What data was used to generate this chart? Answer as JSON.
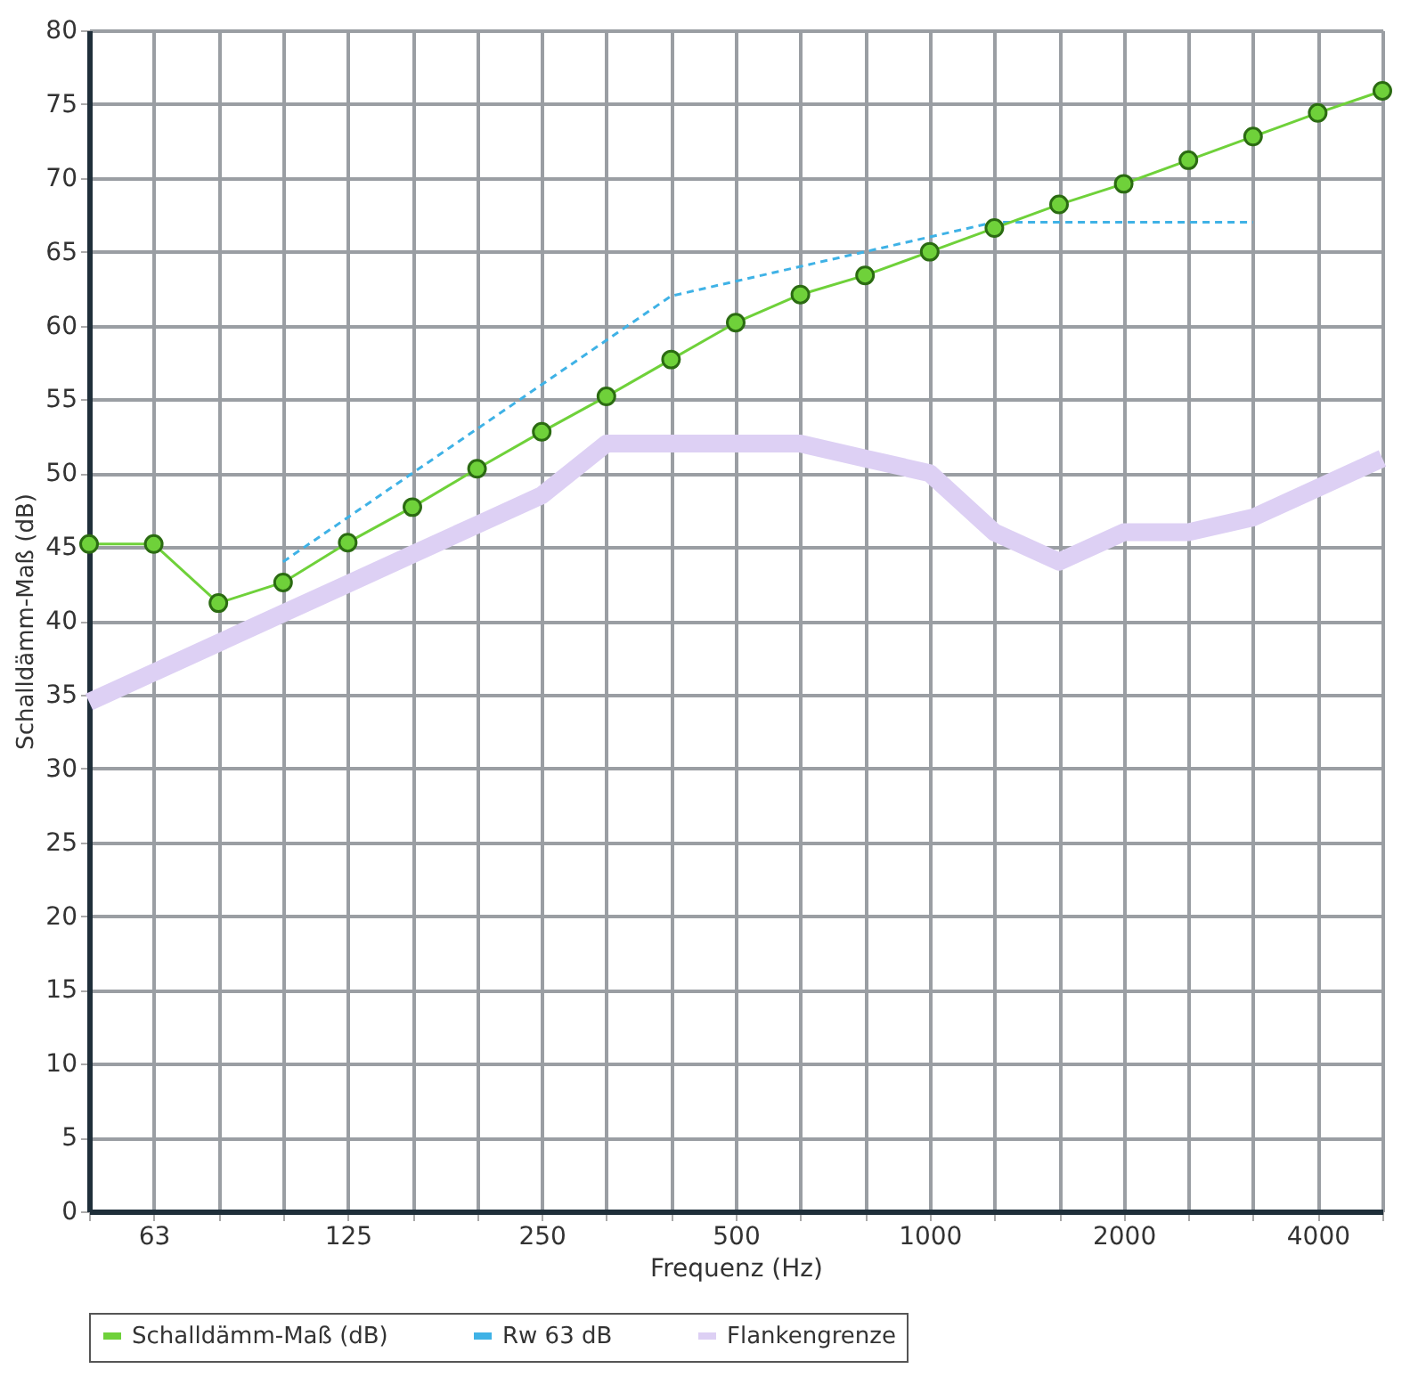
{
  "chart_data": {
    "type": "line",
    "categories": [
      null,
      "63",
      null,
      null,
      "125",
      null,
      null,
      "250",
      null,
      null,
      "500",
      null,
      null,
      "1000",
      null,
      null,
      "2000",
      null,
      null,
      "4000",
      null
    ],
    "xlabel": "Frequenz (Hz)",
    "ylabel": "Schalldämm-Maß (dB)",
    "ylim": [
      0,
      80
    ],
    "yticks": [
      0,
      5,
      10,
      15,
      20,
      25,
      30,
      35,
      40,
      45,
      50,
      55,
      60,
      65,
      70,
      75,
      80
    ],
    "grid": true,
    "legend": "bottom",
    "series": [
      {
        "name": "Schalldämm-Maß (dB)",
        "color": "#6fd13a",
        "marker": "circle",
        "line_style": "solid",
        "values": [
          45.2,
          45.2,
          41.2,
          42.6,
          45.3,
          47.7,
          50.3,
          52.8,
          55.2,
          57.7,
          60.2,
          62.1,
          63.4,
          65.0,
          66.6,
          68.2,
          69.6,
          71.2,
          72.8,
          74.4,
          75.9
        ]
      },
      {
        "name": "Rw 63 dB",
        "color": "#3fb2e6",
        "marker": "none",
        "line_style": "dashed",
        "values": [
          null,
          null,
          null,
          44,
          47,
          50,
          53,
          56,
          59,
          62,
          63,
          64,
          65,
          66,
          67,
          67,
          67,
          67,
          67,
          null,
          null
        ]
      },
      {
        "name": "Flankengrenze",
        "color": "#ddd0f4",
        "marker": "none",
        "line_style": "solid",
        "values": [
          34.5,
          36.5,
          38.5,
          40.5,
          42.5,
          44.5,
          46.5,
          48.5,
          52,
          52,
          52,
          52,
          51,
          50,
          46,
          44,
          46,
          46,
          47,
          49,
          51
        ]
      }
    ]
  }
}
